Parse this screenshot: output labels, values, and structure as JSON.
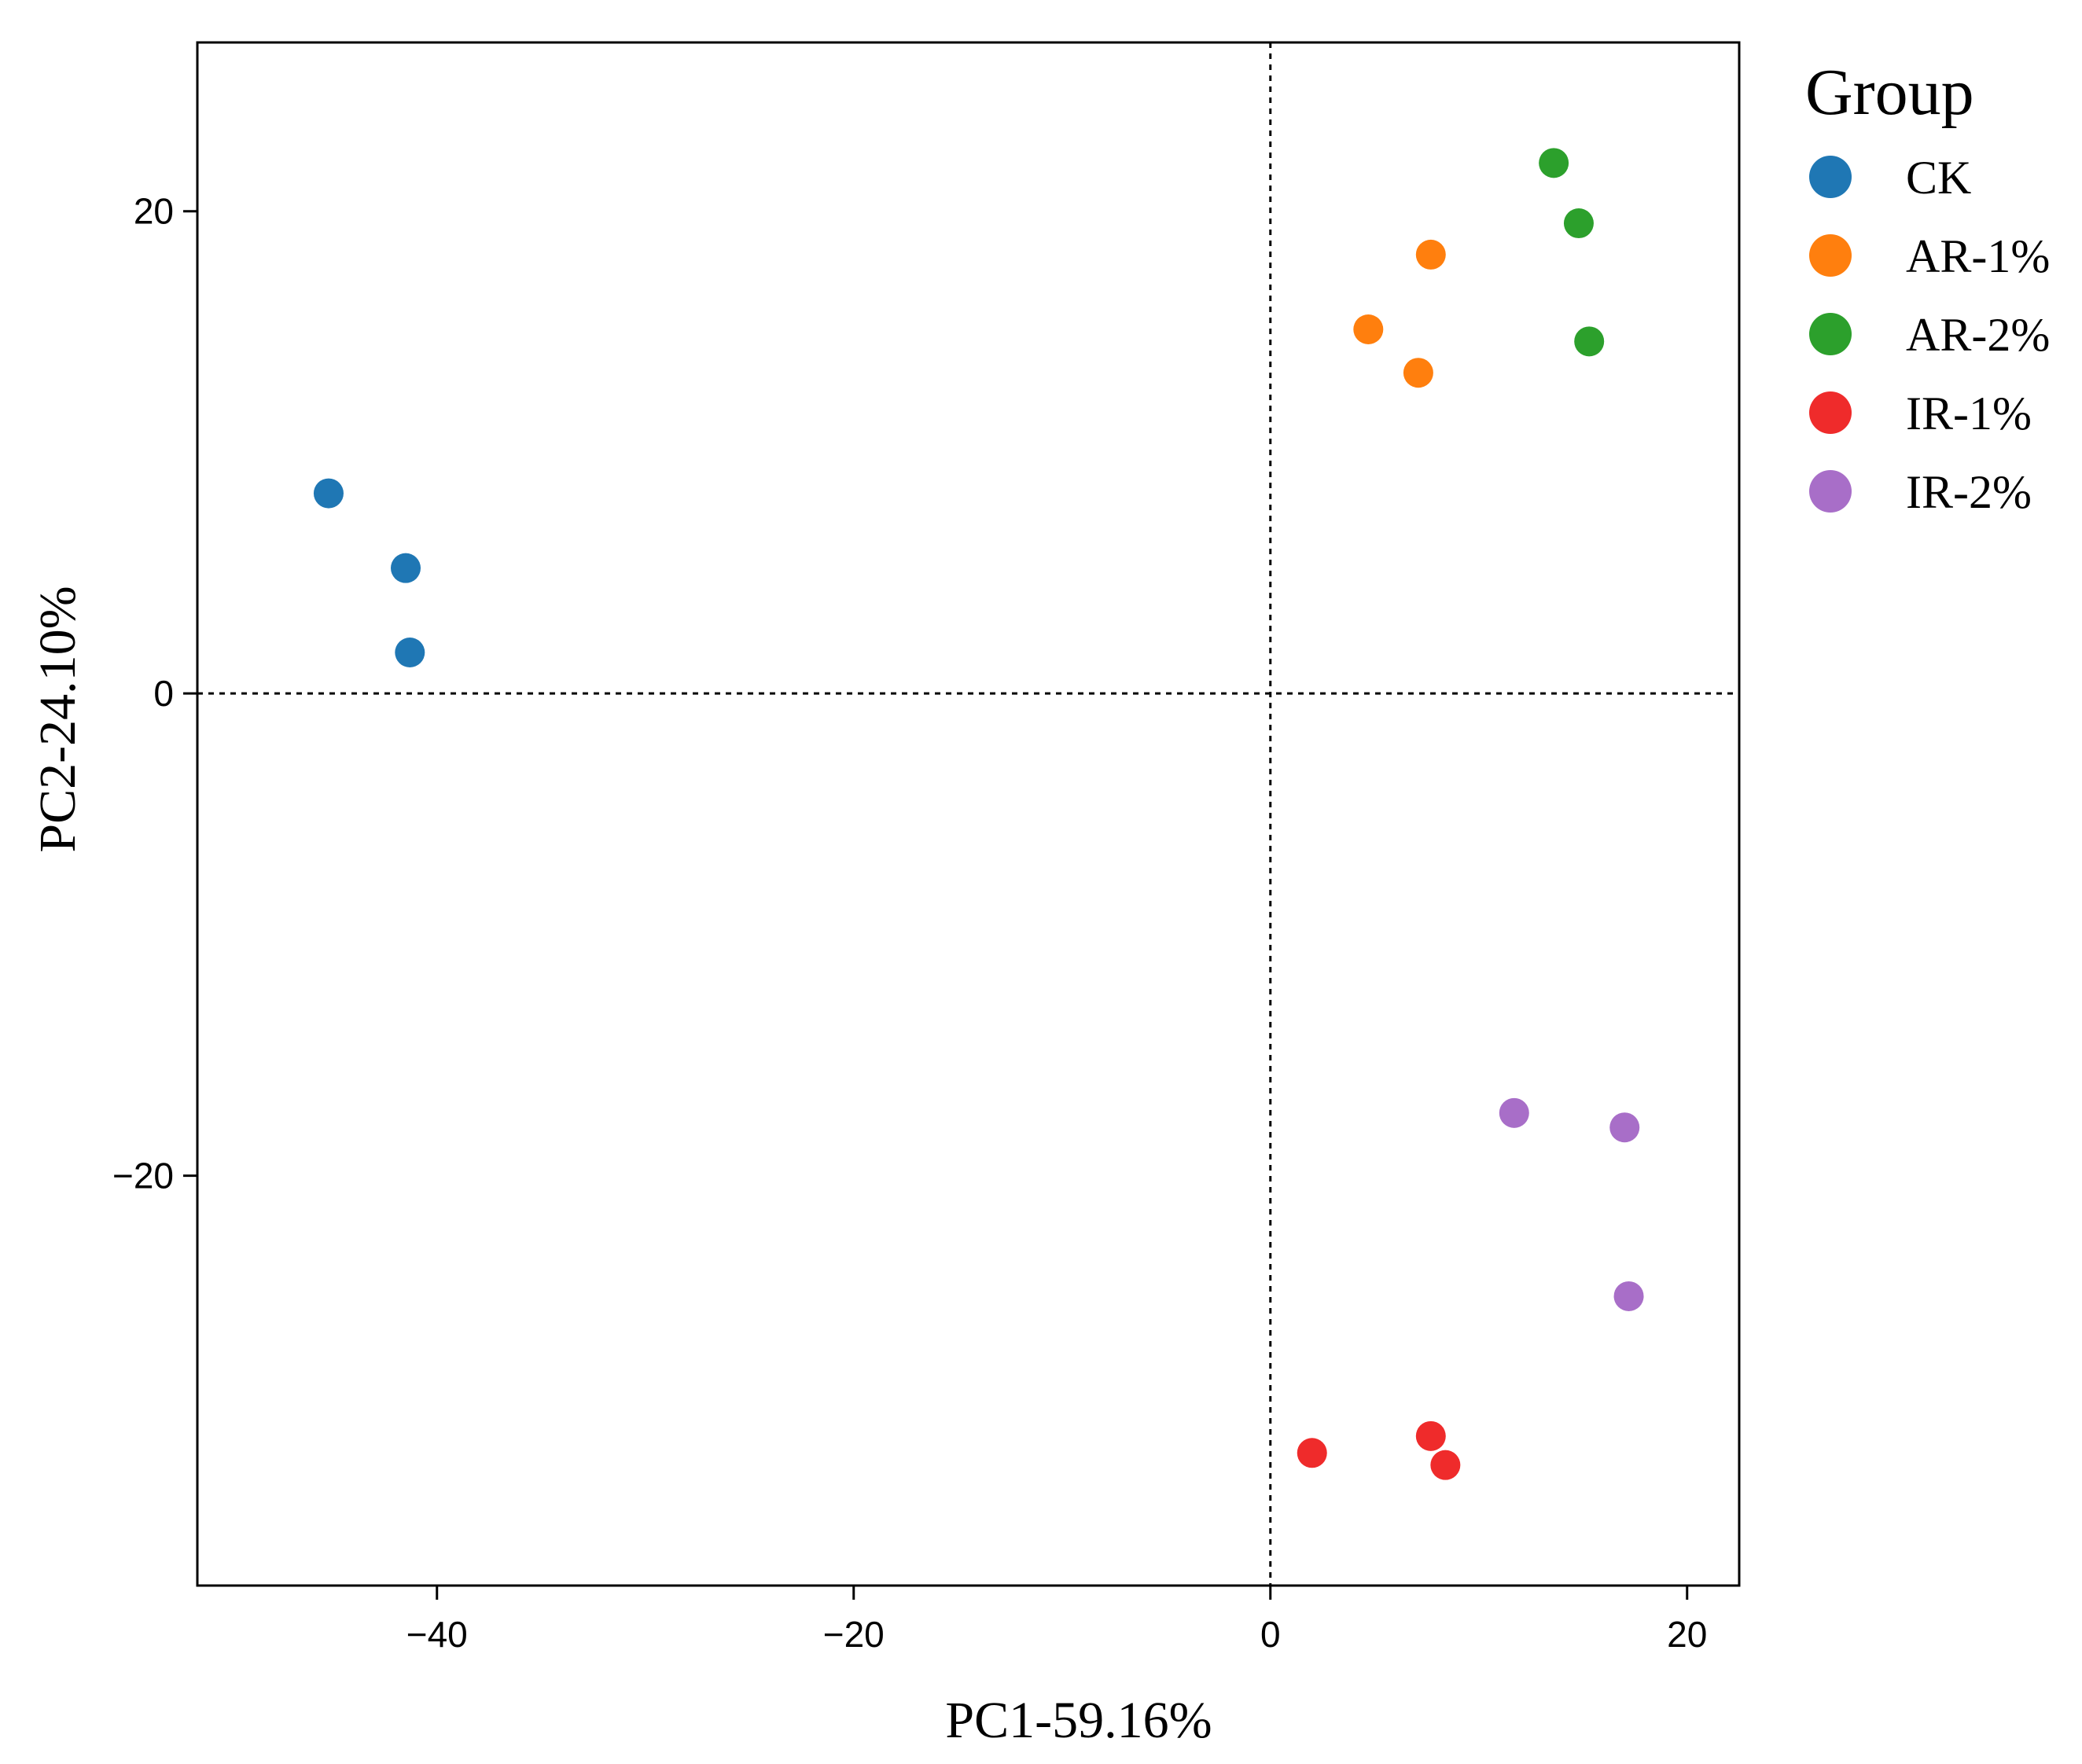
{
  "chart_data": {
    "type": "scatter",
    "xlabel": "PC1-59.16%",
    "ylabel": "PC2-24.10%",
    "xlim": [
      -51.5,
      22.5
    ],
    "ylim": [
      -37,
      27
    ],
    "xticks": [
      -40,
      -20,
      0,
      20
    ],
    "yticks": [
      -20,
      0,
      20
    ],
    "xtick_labels": [
      "−40",
      "−20",
      "0",
      "20"
    ],
    "ytick_labels": [
      "−20",
      "0",
      "20"
    ],
    "reference_lines": {
      "x": 0,
      "y": 0
    },
    "legend": {
      "title": "Group",
      "position": "right"
    },
    "series": [
      {
        "name": "CK",
        "color": "#1f77b4",
        "x": [
          -45.2,
          -41.5,
          -41.3
        ],
        "y": [
          8.3,
          5.2,
          1.7
        ]
      },
      {
        "name": "AR-1%",
        "color": "#ff7f0e",
        "x": [
          7.7,
          4.7,
          7.1
        ],
        "y": [
          18.2,
          15.1,
          13.3
        ]
      },
      {
        "name": "AR-2%",
        "color": "#2ca02c",
        "x": [
          13.6,
          14.8,
          15.3
        ],
        "y": [
          22.0,
          19.5,
          14.6
        ]
      },
      {
        "name": "IR-1%",
        "color": "#ef2b2b",
        "x": [
          2.0,
          7.7,
          8.4
        ],
        "y": [
          -31.5,
          -30.8,
          -32.0
        ]
      },
      {
        "name": "IR-2%",
        "color": "#a86ec8",
        "x": [
          11.7,
          17.0,
          17.2
        ],
        "y": [
          -17.4,
          -18.0,
          -25.0
        ]
      }
    ]
  }
}
